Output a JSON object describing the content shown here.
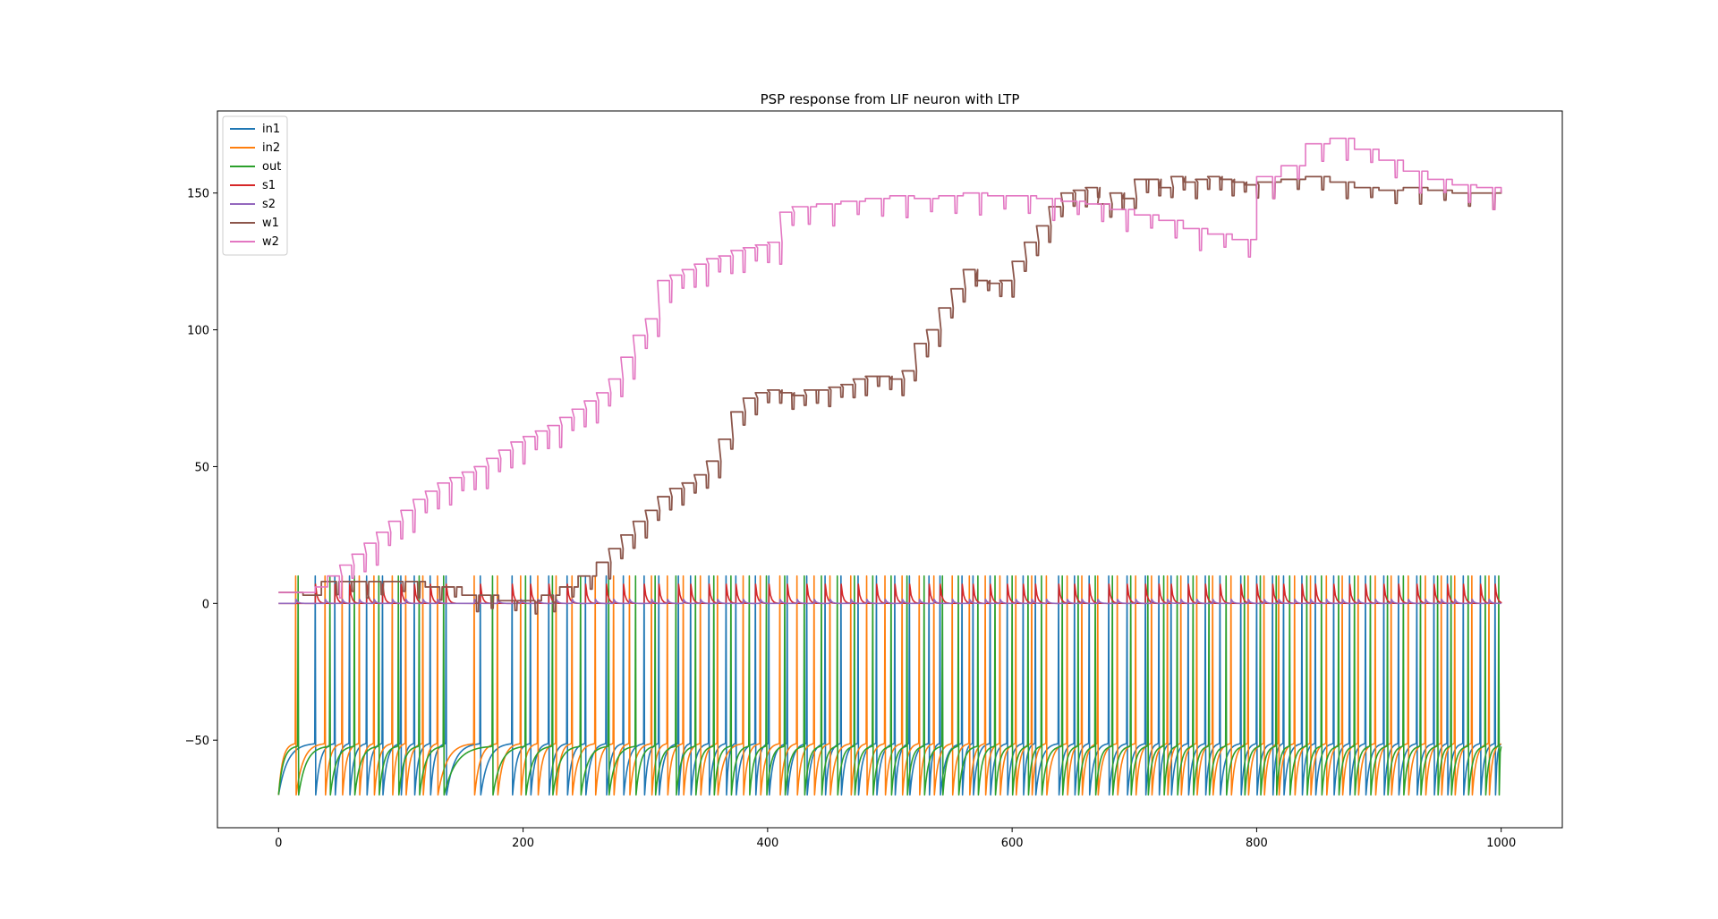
{
  "chart_data": {
    "type": "line",
    "title": "PSP response from LIF neuron with LTP",
    "xlabel": "",
    "ylabel": "",
    "xlim": [
      -50,
      1050
    ],
    "ylim": [
      -82,
      180
    ],
    "xticks": [
      0,
      200,
      400,
      600,
      800,
      1000
    ],
    "yticks": [
      -50,
      0,
      50,
      100,
      150
    ],
    "grid": false,
    "legend_position": "top-left",
    "series": [
      {
        "name": "in1",
        "color": "#1f77b4",
        "spike_times": [
          30,
          46,
          58,
          72,
          85,
          100,
          111,
          124,
          137,
          165,
          191,
          206,
          221,
          236,
          251,
          268,
          282,
          299,
          311,
          327,
          337,
          352,
          366,
          374,
          390,
          401,
          416,
          432,
          447,
          460,
          474,
          489,
          504,
          516,
          532,
          541,
          559,
          568,
          582,
          596,
          609,
          619,
          638,
          651,
          663,
          679,
          694,
          709,
          720,
          730,
          744,
          758,
          770,
          787,
          800,
          813,
          822,
          837,
          848,
          863,
          876,
          889,
          904,
          916,
          931,
          945,
          956,
          969,
          983,
          995
        ],
        "rest": -70,
        "peak": 10,
        "plateau": -51
      },
      {
        "name": "in2",
        "color": "#ff7f0e",
        "spike_times": [
          14,
          38,
          52,
          66,
          78,
          93,
          104,
          118,
          130,
          160,
          179,
          198,
          212,
          227,
          240,
          259,
          274,
          287,
          305,
          318,
          331,
          345,
          359,
          380,
          394,
          410,
          424,
          438,
          451,
          468,
          481,
          496,
          510,
          524,
          536,
          551,
          565,
          578,
          590,
          603,
          616,
          628,
          645,
          657,
          670,
          686,
          701,
          714,
          727,
          738,
          751,
          764,
          779,
          793,
          806,
          818,
          831,
          844,
          857,
          870,
          883,
          897,
          910,
          924,
          938,
          951,
          962,
          976,
          990
        ],
        "rest": -70,
        "peak": 10,
        "plateau": -51
      },
      {
        "name": "out",
        "color": "#2ca02c",
        "spike_times": [
          16,
          42,
          62,
          82,
          98,
          115,
          135,
          175,
          202,
          224,
          247,
          270,
          292,
          308,
          325,
          341,
          356,
          370,
          385,
          399,
          414,
          430,
          444,
          457,
          471,
          486,
          501,
          514,
          528,
          543,
          556,
          572,
          586,
          600,
          613,
          624,
          641,
          654,
          668,
          682,
          697,
          711,
          724,
          735,
          748,
          761,
          775,
          790,
          803,
          816,
          827,
          841,
          853,
          867,
          880,
          893,
          907,
          920,
          934,
          948,
          959,
          973,
          987,
          998
        ],
        "rest": -70,
        "peak": 10,
        "plateau": -52
      },
      {
        "name": "s1",
        "color": "#d62728",
        "baseline": 0,
        "pulse": 7
      },
      {
        "name": "s2",
        "color": "#9467bd",
        "baseline": 0,
        "pulse": 1.5
      },
      {
        "name": "w1",
        "color": "#8c564b",
        "x": [
          0,
          20,
          35,
          60,
          90,
          120,
          150,
          180,
          200,
          215,
          230,
          245,
          260,
          270,
          280,
          290,
          300,
          310,
          320,
          330,
          340,
          350,
          360,
          370,
          380,
          390,
          400,
          410,
          420,
          430,
          440,
          450,
          460,
          470,
          480,
          490,
          500,
          510,
          520,
          530,
          540,
          550,
          560,
          570,
          580,
          590,
          600,
          610,
          620,
          630,
          640,
          650,
          660,
          670,
          680,
          690,
          700,
          710,
          720,
          730,
          740,
          750,
          760,
          770,
          780,
          790,
          800,
          820,
          840,
          860,
          880,
          900,
          920,
          940,
          960,
          980,
          1000
        ],
        "y": [
          4,
          3,
          8,
          8,
          8,
          6,
          3,
          1,
          1,
          3,
          6,
          10,
          15,
          20,
          25,
          30,
          34,
          39,
          42,
          44,
          47,
          52,
          60,
          70,
          75,
          77,
          78,
          77,
          76,
          78,
          78,
          79,
          80,
          82,
          83,
          83,
          82,
          85,
          95,
          100,
          108,
          115,
          122,
          118,
          117,
          118,
          125,
          132,
          138,
          145,
          150,
          151,
          152,
          146,
          150,
          148,
          155,
          155,
          152,
          156,
          154,
          155,
          156,
          155,
          154,
          153,
          154,
          155,
          156,
          154,
          152,
          151,
          152,
          151,
          150,
          150,
          151
        ],
        "dip": 6
      },
      {
        "name": "w2",
        "color": "#e377c2",
        "x": [
          0,
          20,
          30,
          40,
          50,
          60,
          70,
          80,
          90,
          100,
          110,
          120,
          130,
          140,
          150,
          160,
          170,
          180,
          190,
          200,
          210,
          220,
          230,
          240,
          250,
          260,
          270,
          280,
          290,
          300,
          310,
          320,
          330,
          340,
          350,
          360,
          370,
          380,
          390,
          400,
          410,
          420,
          440,
          460,
          480,
          500,
          520,
          540,
          560,
          580,
          600,
          620,
          640,
          660,
          680,
          700,
          720,
          740,
          760,
          780,
          800,
          820,
          840,
          860,
          880,
          900,
          920,
          940,
          960,
          980,
          1000
        ],
        "y": [
          4,
          4,
          6,
          10,
          14,
          18,
          22,
          26,
          30,
          34,
          38,
          41,
          44,
          46,
          48,
          50,
          53,
          56,
          59,
          61,
          63,
          65,
          68,
          71,
          74,
          77,
          82,
          90,
          98,
          104,
          118,
          120,
          122,
          124,
          126,
          127,
          129,
          130,
          131,
          132,
          143,
          145,
          146,
          147,
          148,
          149,
          148,
          149,
          150,
          149,
          149,
          148,
          147,
          146,
          144,
          142,
          140,
          137,
          135,
          133,
          156,
          160,
          168,
          170,
          166,
          162,
          158,
          155,
          153,
          152,
          150
        ],
        "dip": 8
      }
    ]
  }
}
